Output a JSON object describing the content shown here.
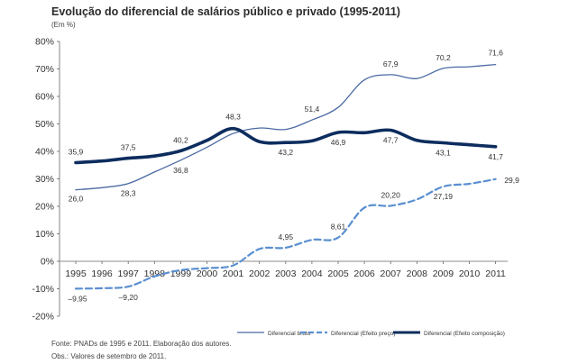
{
  "title": "Evolução do diferencial de salários público e privado (1995-2011)",
  "subtitle": "(Em %)",
  "source": "Fonte: PNADs de 1995 e 2011. Elaboração dos autores.",
  "obs": "Obs.: Valores de setembro de 2011.",
  "chart_data": {
    "type": "line",
    "x": [
      "1995",
      "1996",
      "1997",
      "1998",
      "1999",
      "2000",
      "2001",
      "2002",
      "2003",
      "2004",
      "2005",
      "2006",
      "2007",
      "2008",
      "2009",
      "2010",
      "2011"
    ],
    "ylim": [
      -20,
      80
    ],
    "yticks": [
      -20,
      -10,
      0,
      10,
      20,
      30,
      40,
      50,
      60,
      70,
      80
    ],
    "ytick_labels": [
      "-20%",
      "-10%",
      "0%",
      "10%",
      "20%",
      "30%",
      "40%",
      "50%",
      "60%",
      "70%",
      "80%"
    ],
    "grid": false,
    "legend_position": "bottom",
    "series": [
      {
        "name": "Diferencial bruto",
        "style": "thin-solid",
        "color": "#4a6aa3",
        "values": [
          26.0,
          26.8,
          28.3,
          32.5,
          36.8,
          41.5,
          46.5,
          48.5,
          48.0,
          51.4,
          56.0,
          66.0,
          67.9,
          66.5,
          70.2,
          70.8,
          71.6
        ],
        "labels": {
          "1995": "26,0",
          "1997": "28,3",
          "1999": "36,8",
          "2004": "51,4",
          "2007": "67,9",
          "2009": "70,2",
          "2011": "71,6"
        }
      },
      {
        "name": "Diferencial (Efeito preço)",
        "style": "dashed",
        "color": "#5a8fd0",
        "values": [
          -9.95,
          -9.8,
          -9.2,
          -5.5,
          -3.2,
          -2.5,
          -1.5,
          4.5,
          4.95,
          7.8,
          8.61,
          19.5,
          20.2,
          22.5,
          27.19,
          28.2,
          29.9
        ],
        "labels": {
          "1995": "–9,95",
          "1997": "–9,20",
          "2003": "4,95",
          "2005": "8,61",
          "2007": "20,20",
          "2009": "27,19",
          "2011": "29,9"
        }
      },
      {
        "name": "Diferencial (Efeito composição)",
        "style": "thick-solid",
        "color": "#0d2d5e",
        "values": [
          35.9,
          36.5,
          37.5,
          38.3,
          40.2,
          44.0,
          48.3,
          43.5,
          43.2,
          43.8,
          46.9,
          46.8,
          47.7,
          44.0,
          43.1,
          42.4,
          41.7
        ],
        "labels": {
          "1995": "35,9",
          "1997": "37,5",
          "1999": "40,2",
          "2001": "48,3",
          "2003": "43,2",
          "2005": "46,9",
          "2007": "47,7",
          "2009": "43,1",
          "2011": "41,7"
        }
      }
    ]
  }
}
